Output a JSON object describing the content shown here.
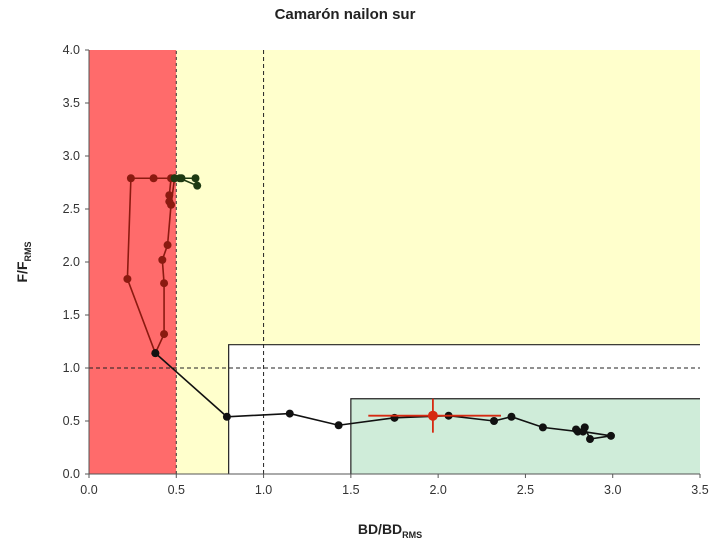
{
  "chart_data": {
    "type": "scatter",
    "title": "Camarón nailon sur",
    "xlabel": {
      "main": "BD/BD",
      "sub": "RMS"
    },
    "ylabel": {
      "main": "F/F",
      "sub": "RMS"
    },
    "xlim": [
      0,
      3.5
    ],
    "ylim": [
      0,
      4.0
    ],
    "x_ticks": [
      "0.0",
      "0.5",
      "1.0",
      "1.5",
      "2.0",
      "2.5",
      "3.0",
      "3.5"
    ],
    "y_ticks": [
      "0.0",
      "0.5",
      "1.0",
      "1.5",
      "2.0",
      "2.5",
      "3.0",
      "3.5",
      "4.0"
    ],
    "grid": false,
    "legend": "none",
    "zones": [
      {
        "name": "collapse",
        "color": "#ff6b6b",
        "x": [
          0,
          0.5
        ],
        "y": [
          0,
          4.0
        ]
      },
      {
        "name": "overexploitation",
        "color": "#ffffcc",
        "x": [
          0.5,
          3.5
        ],
        "y": [
          0,
          4.0
        ]
      },
      {
        "name": "full-exploitation",
        "color": "#ffffff",
        "x": [
          0.8,
          3.5
        ],
        "y": [
          0,
          1.22
        ]
      },
      {
        "name": "underexploitation",
        "color": "#cfecd9",
        "x": [
          1.5,
          3.5
        ],
        "y": [
          0,
          0.71
        ]
      }
    ],
    "reference_lines": {
      "x": 1.0,
      "y": 1.0
    },
    "series": [
      {
        "color": "#8b1a10",
        "points": [
          [
            0.46,
            2.57
          ],
          [
            0.46,
            2.63
          ],
          [
            0.47,
            2.79
          ],
          [
            0.37,
            2.79
          ],
          [
            0.24,
            2.79
          ],
          [
            0.22,
            1.84
          ],
          [
            0.38,
            1.14
          ],
          [
            0.43,
            1.32
          ],
          [
            0.43,
            1.8
          ],
          [
            0.42,
            2.02
          ],
          [
            0.45,
            2.16
          ],
          [
            0.47,
            2.54
          ],
          [
            0.49,
            2.79
          ]
        ]
      },
      {
        "color": "#1e3a12",
        "points": [
          [
            0.49,
            2.79
          ],
          [
            0.53,
            2.79
          ],
          [
            0.61,
            2.79
          ],
          [
            0.62,
            2.72
          ],
          [
            0.52,
            2.79
          ]
        ]
      },
      {
        "color": "#111111",
        "points": [
          [
            0.38,
            1.14
          ],
          [
            0.79,
            0.54
          ],
          [
            1.15,
            0.57
          ],
          [
            1.43,
            0.46
          ],
          [
            1.75,
            0.53
          ],
          [
            2.06,
            0.55
          ],
          [
            2.32,
            0.5
          ],
          [
            2.42,
            0.54
          ],
          [
            2.6,
            0.44
          ],
          [
            2.8,
            0.4
          ],
          [
            2.84,
            0.44
          ],
          [
            2.87,
            0.33
          ],
          [
            2.99,
            0.36
          ],
          [
            2.83,
            0.4
          ],
          [
            2.79,
            0.42
          ]
        ]
      }
    ],
    "current_point": {
      "x": 1.97,
      "y": 0.55,
      "color": "#d62a12",
      "x_err": [
        1.6,
        2.36
      ],
      "y_err": [
        0.39,
        0.71
      ]
    }
  }
}
